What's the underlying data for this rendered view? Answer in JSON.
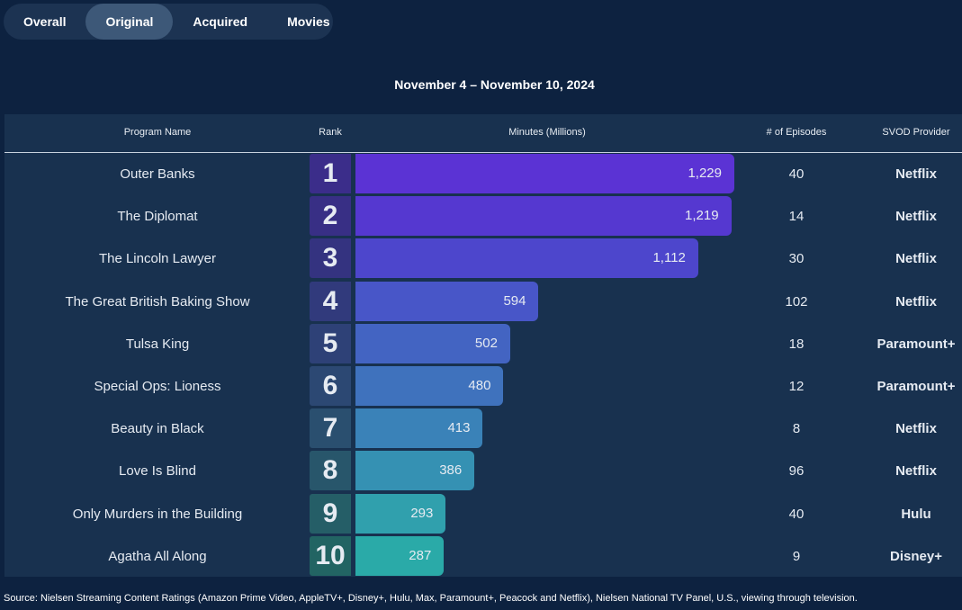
{
  "tabs": [
    {
      "label": "Overall",
      "active": false
    },
    {
      "label": "Original",
      "active": true
    },
    {
      "label": "Acquired",
      "active": false
    },
    {
      "label": "Movies",
      "active": false
    }
  ],
  "date_range": "November 4 – November 10, 2024",
  "columns": {
    "program": "Program Name",
    "rank": "Rank",
    "minutes": "Minutes (Millions)",
    "episodes": "# of Episodes",
    "provider": "SVOD Provider"
  },
  "chart_data": {
    "type": "bar",
    "orientation": "horizontal",
    "title": "November 4 – November 10, 2024",
    "xlabel": "Minutes (Millions)",
    "ylabel": "Program Name",
    "categories": [
      "Outer Banks",
      "The Diplomat",
      "The Lincoln Lawyer",
      "The Great British Baking Show",
      "Tulsa King",
      "Special Ops: Lioness",
      "Beauty in Black",
      "Love Is Blind",
      "Only Murders in the Building",
      "Agatha All Along"
    ],
    "values": [
      1229,
      1219,
      1112,
      594,
      502,
      480,
      413,
      386,
      293,
      287
    ],
    "value_labels": [
      "1,229",
      "1,219",
      "1,112",
      "594",
      "502",
      "480",
      "413",
      "386",
      "293",
      "287"
    ],
    "xlim": [
      0,
      1229
    ],
    "rows": [
      {
        "program": "Outer Banks",
        "rank": "1",
        "minutes": 1229,
        "minutes_label": "1,229",
        "episodes": "40",
        "provider": "Netflix",
        "color": "#5b33d4",
        "rank_color": "#3b2d8a"
      },
      {
        "program": "The Diplomat",
        "rank": "2",
        "minutes": 1219,
        "minutes_label": "1,219",
        "episodes": "14",
        "provider": "Netflix",
        "color": "#5538d0",
        "rank_color": "#382f85"
      },
      {
        "program": "The Lincoln Lawyer",
        "rank": "3",
        "minutes": 1112,
        "minutes_label": "1,112",
        "episodes": "30",
        "provider": "Netflix",
        "color": "#4d46cc",
        "rank_color": "#343380"
      },
      {
        "program": "The Great British Baking Show",
        "rank": "4",
        "minutes": 594,
        "minutes_label": "594",
        "episodes": "102",
        "provider": "Netflix",
        "color": "#4856c8",
        "rank_color": "#313a7c"
      },
      {
        "program": "Tulsa King",
        "rank": "5",
        "minutes": 502,
        "minutes_label": "502",
        "episodes": "18",
        "provider": "Paramount+",
        "color": "#4364c2",
        "rank_color": "#2e4177"
      },
      {
        "program": "Special Ops: Lioness",
        "rank": "6",
        "minutes": 480,
        "minutes_label": "480",
        "episodes": "12",
        "provider": "Paramount+",
        "color": "#3f72bd",
        "rank_color": "#2c4873"
      },
      {
        "program": "Beauty in Black",
        "rank": "7",
        "minutes": 413,
        "minutes_label": "413",
        "episodes": "8",
        "provider": "Netflix",
        "color": "#3a82b8",
        "rank_color": "#2a4f6f"
      },
      {
        "program": "Love Is Blind",
        "rank": "8",
        "minutes": 386,
        "minutes_label": "386",
        "episodes": "96",
        "provider": "Netflix",
        "color": "#3591b3",
        "rank_color": "#28566b"
      },
      {
        "program": "Only Murders in the Building",
        "rank": "9",
        "minutes": 293,
        "minutes_label": "293",
        "episodes": "40",
        "provider": "Hulu",
        "color": "#30a0ad",
        "rank_color": "#255e67"
      },
      {
        "program": "Agatha All Along",
        "rank": "10",
        "minutes": 287,
        "minutes_label": "287",
        "episodes": "9",
        "provider": "Disney+",
        "color": "#2aaaa8",
        "rank_color": "#226463"
      }
    ]
  },
  "source": "Source: Nielsen Streaming Content Ratings (Amazon Prime Video, AppleTV+, Disney+, Hulu, Max, Paramount+, Peacock and Netflix), Nielsen National TV Panel, U.S., viewing through television."
}
